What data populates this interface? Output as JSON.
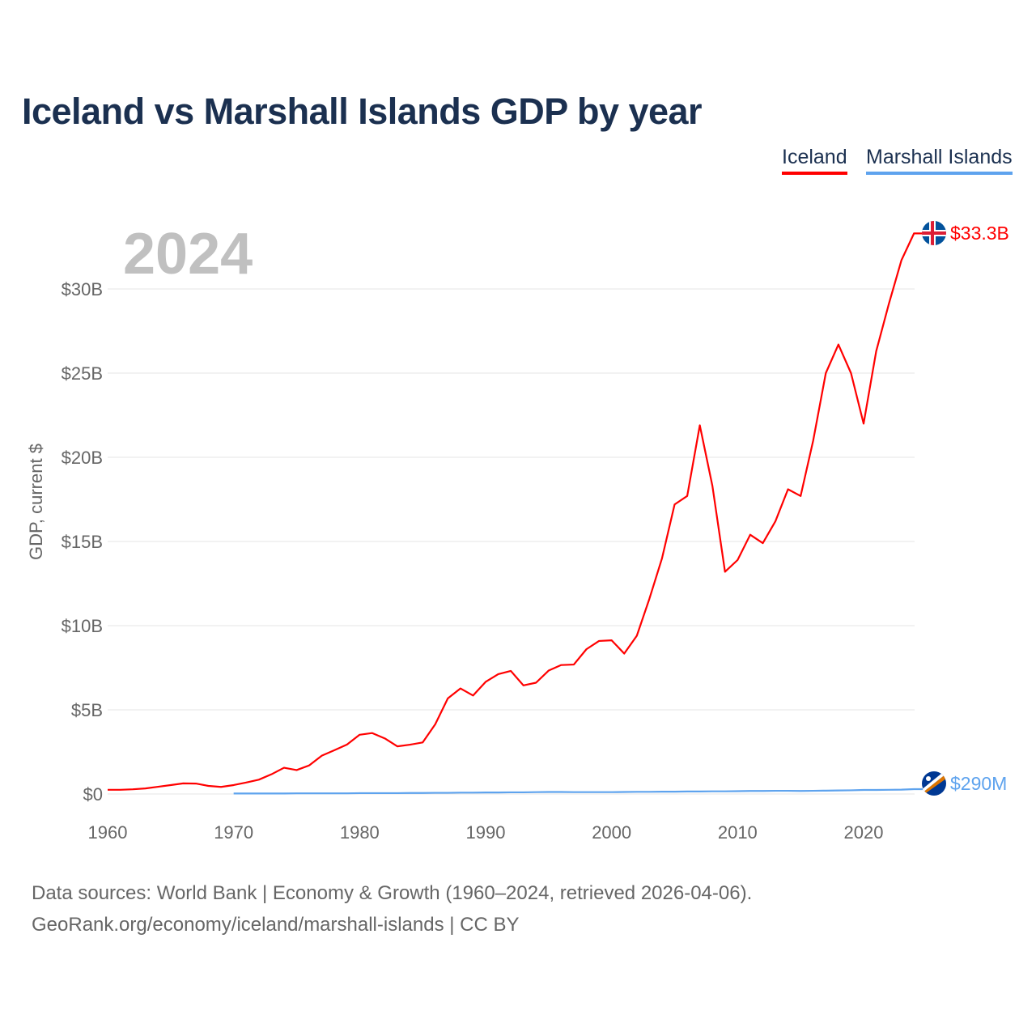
{
  "chart_data": {
    "type": "line",
    "title": "Iceland vs Marshall Islands GDP by year",
    "xlabel": "",
    "ylabel": "GDP, current $",
    "xlim": [
      1960,
      2024
    ],
    "ylim": [
      0,
      33.3
    ],
    "x_ticks": [
      1960,
      1970,
      1980,
      1990,
      2000,
      2010,
      2020
    ],
    "x_tick_labels": [
      "1960",
      "1970",
      "1980",
      "1990",
      "2000",
      "2010",
      "2020"
    ],
    "y_ticks": [
      0,
      5,
      10,
      15,
      20,
      25,
      30
    ],
    "y_tick_labels": [
      "$0",
      "$5B",
      "$10B",
      "$15B",
      "$20B",
      "$25B",
      "$30B"
    ],
    "grid": true,
    "legend_placement": "top-right",
    "year_label": "2024",
    "series": [
      {
        "name": "Iceland",
        "color": "#ff0000",
        "end_label": "$33.3B",
        "x_start": 1960,
        "values": [
          0.25,
          0.25,
          0.28,
          0.33,
          0.43,
          0.53,
          0.63,
          0.62,
          0.48,
          0.42,
          0.53,
          0.68,
          0.85,
          1.17,
          1.56,
          1.42,
          1.7,
          2.28,
          2.6,
          2.94,
          3.52,
          3.62,
          3.3,
          2.83,
          2.93,
          3.06,
          4.14,
          5.68,
          6.27,
          5.85,
          6.66,
          7.12,
          7.31,
          6.45,
          6.61,
          7.33,
          7.66,
          7.69,
          8.6,
          9.09,
          9.13,
          8.34,
          9.4,
          11.6,
          14.0,
          17.2,
          17.7,
          21.9,
          18.3,
          13.2,
          13.9,
          15.4,
          14.9,
          16.2,
          18.1,
          17.7,
          21.0,
          25.0,
          26.7,
          25.0,
          22.0,
          26.3,
          29.1,
          31.7,
          33.3
        ]
      },
      {
        "name": "Marshall Islands",
        "color": "#5ea3ee",
        "end_label": "$290M",
        "x_start": 1970,
        "values": [
          0.03,
          0.03,
          0.03,
          0.03,
          0.03,
          0.04,
          0.04,
          0.04,
          0.04,
          0.04,
          0.05,
          0.05,
          0.05,
          0.05,
          0.06,
          0.06,
          0.07,
          0.07,
          0.08,
          0.08,
          0.09,
          0.09,
          0.1,
          0.1,
          0.11,
          0.12,
          0.12,
          0.11,
          0.11,
          0.11,
          0.11,
          0.12,
          0.13,
          0.13,
          0.14,
          0.14,
          0.15,
          0.15,
          0.16,
          0.16,
          0.17,
          0.18,
          0.18,
          0.19,
          0.19,
          0.18,
          0.19,
          0.2,
          0.21,
          0.22,
          0.24,
          0.24,
          0.25,
          0.26,
          0.29
        ]
      }
    ]
  },
  "footer": {
    "line1": "Data sources: World Bank | Economy & Growth (1960–2024, retrieved 2026-04-06).",
    "line2": "GeoRank.org/economy/iceland/marshall-islands | CC BY"
  }
}
